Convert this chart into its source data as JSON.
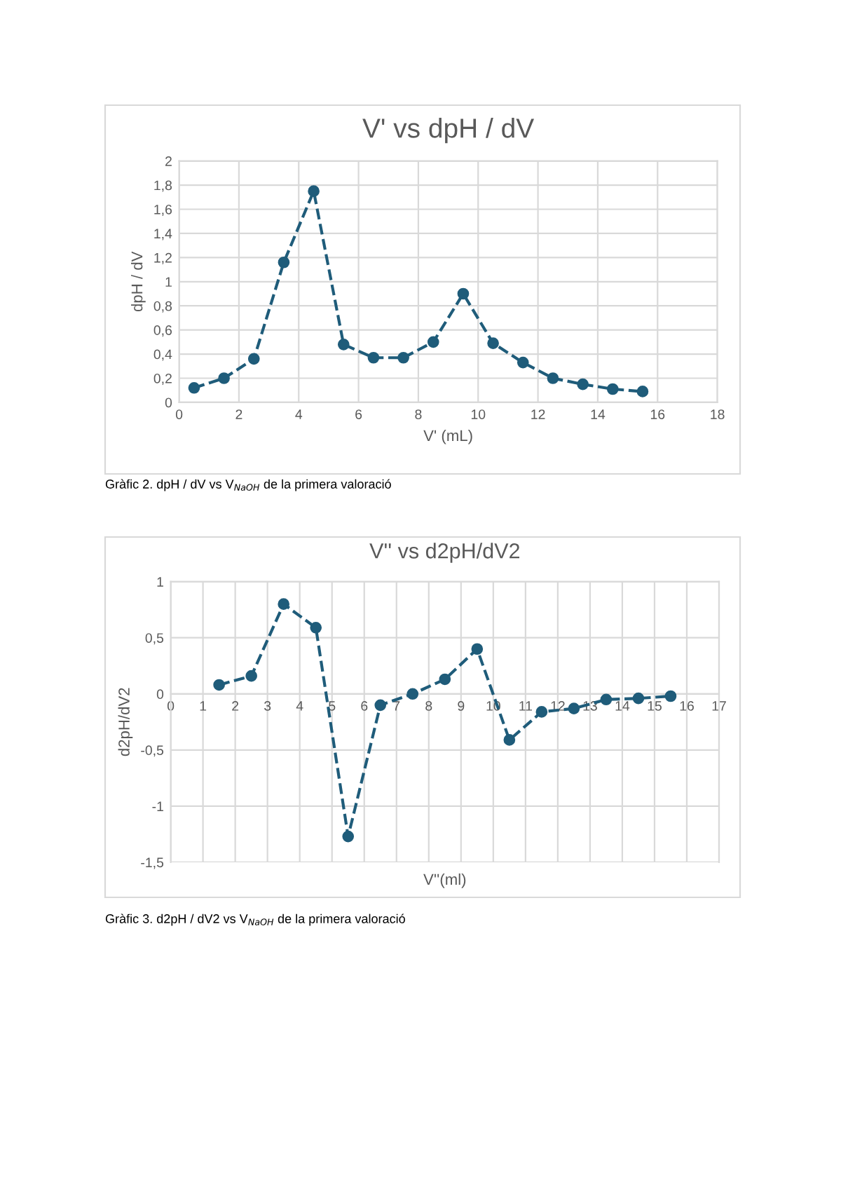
{
  "chart_data": [
    {
      "type": "line",
      "title": "V' vs dpH / dV",
      "xlabel": "V' (mL)",
      "ylabel": "dpH / dV",
      "x": [
        0.5,
        1.5,
        2.5,
        3.5,
        4.5,
        5.5,
        6.5,
        7.5,
        8.5,
        9.5,
        10.5,
        11.5,
        12.5,
        13.5,
        14.5,
        15.5
      ],
      "series": [
        {
          "color": "#1f5c7a",
          "values": [
            0.12,
            0.2,
            0.36,
            1.16,
            1.75,
            0.48,
            0.37,
            0.37,
            0.5,
            0.9,
            0.49,
            0.33,
            0.2,
            0.15,
            0.11,
            0.09
          ]
        }
      ],
      "xlim": [
        0,
        18
      ],
      "xticks": [
        0,
        2,
        4,
        6,
        8,
        10,
        12,
        14,
        16,
        18
      ],
      "ylim": [
        0,
        2
      ],
      "yticks": [
        0,
        {
          "value": 0.2,
          "label": "0,2"
        },
        {
          "value": 0.4,
          "label": "0,4"
        },
        {
          "value": 0.6,
          "label": "0,6"
        },
        {
          "value": 0.8,
          "label": "0,8"
        },
        1,
        {
          "value": 1.2,
          "label": "1,2"
        },
        {
          "value": 1.4,
          "label": "1,4"
        },
        {
          "value": 1.6,
          "label": "1,6"
        },
        {
          "value": 1.8,
          "label": "1,8"
        },
        2
      ],
      "grid": true,
      "marker": "circle",
      "line_style": "dashed",
      "annotations": [
        "Gràfic 2. dpH / dV vs V$_{NaOH}$ de la primera valoració"
      ]
    },
    {
      "type": "line",
      "title": "V'' vs d2pH/dV2",
      "xlabel": "V''(ml)",
      "ylabel": "d2pH/dV2",
      "x": [
        1.5,
        2.5,
        3.5,
        4.5,
        5.5,
        6.5,
        7.5,
        8.5,
        9.5,
        10.5,
        11.5,
        12.5,
        13.5,
        14.5,
        15.5
      ],
      "series": [
        {
          "color": "#1f5c7a",
          "values": [
            0.08,
            0.16,
            0.8,
            0.59,
            -1.27,
            -0.1,
            0,
            0.13,
            0.4,
            -0.41,
            -0.16,
            -0.13,
            -0.05,
            -0.04,
            -0.02
          ]
        }
      ],
      "xlim": [
        0,
        17
      ],
      "xticks": [
        0,
        1,
        2,
        3,
        4,
        5,
        6,
        7,
        8,
        9,
        10,
        11,
        12,
        13,
        14,
        15,
        16,
        17
      ],
      "ylim": [
        -1.5,
        1
      ],
      "yticks": [
        {
          "value": -1.5,
          "label": "-1,5"
        },
        -1,
        {
          "value": -0.5,
          "label": "-0,5"
        },
        0,
        {
          "value": 0.5,
          "label": "0,5"
        },
        1
      ],
      "grid": true,
      "marker": "circle",
      "line_style": "dashed",
      "annotations": [
        "Gràfic 3. d2pH / dV2 vs V$_{NaOH}$ de la primera valoració"
      ]
    }
  ]
}
